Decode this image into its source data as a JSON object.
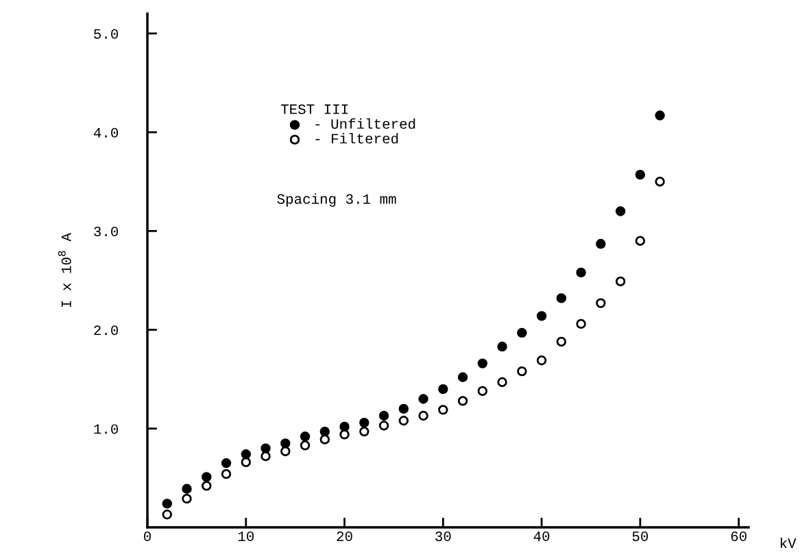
{
  "chart_data": {
    "type": "scatter",
    "xlabel": "kV",
    "ylabel": "I x 10$^{8}$ A",
    "legend_title": "TEST III",
    "x": [
      2,
      4,
      6,
      8,
      10,
      12,
      14,
      16,
      18,
      20,
      22,
      24,
      26,
      28,
      30,
      32,
      34,
      36,
      38,
      40,
      42,
      44,
      46,
      48,
      50,
      52
    ],
    "series": [
      {
        "name": "- Unfiltered",
        "color": "#000000",
        "values": [
          0.24,
          0.39,
          0.51,
          0.65,
          0.74,
          0.8,
          0.85,
          0.92,
          0.97,
          1.02,
          1.06,
          1.13,
          1.2,
          1.3,
          1.4,
          1.52,
          1.66,
          1.83,
          1.97,
          2.14,
          2.32,
          2.58,
          2.87,
          3.2,
          3.57,
          4.17
        ]
      },
      {
        "name": "- Filtered",
        "color": "#ffffff",
        "values": [
          0.13,
          0.29,
          0.42,
          0.54,
          0.66,
          0.72,
          0.77,
          0.83,
          0.89,
          0.94,
          0.97,
          1.03,
          1.08,
          1.13,
          1.19,
          1.28,
          1.38,
          1.47,
          1.58,
          1.69,
          1.88,
          2.06,
          2.27,
          2.49,
          2.9,
          3.5
        ]
      }
    ],
    "annotations": [
      "Spacing 3.1 mm"
    ],
    "xlim": [
      0,
      61
    ],
    "ylim": [
      0,
      5.2
    ],
    "xticks": [
      0,
      10,
      20,
      30,
      40,
      50,
      60
    ],
    "yticks": [
      {
        "value": 1,
        "label": "1.0"
      },
      {
        "value": 2,
        "label": "2.0"
      },
      {
        "value": 3,
        "label": "3.0"
      },
      {
        "value": 4,
        "label": "4.0"
      },
      {
        "value": 5,
        "label": "5.0"
      }
    ],
    "marker": "circle",
    "grid": false,
    "legend": "top left"
  }
}
